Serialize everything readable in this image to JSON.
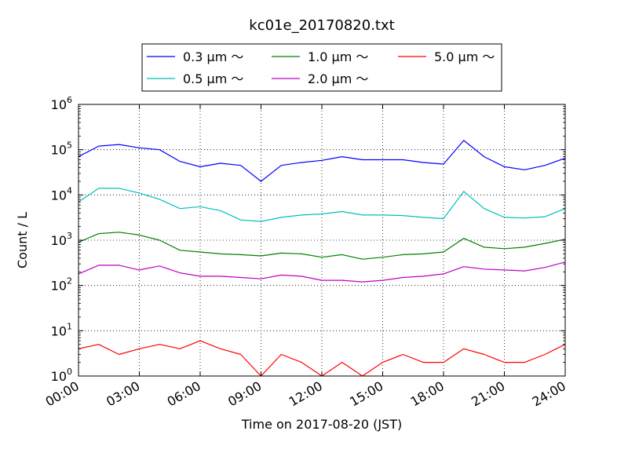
{
  "chart_data": {
    "type": "line",
    "title": "kc01e_20170820.txt",
    "xlabel": "Time on 2017-08-20 (JST)",
    "ylabel": "Count / L",
    "yscale": "log",
    "ylim": [
      1,
      1000000
    ],
    "xlim": [
      "00:00",
      "24:00"
    ],
    "grid": true,
    "legend_position": "top-center",
    "xtick_labels": [
      "00:00",
      "03:00",
      "06:00",
      "09:00",
      "12:00",
      "15:00",
      "18:00",
      "21:00",
      "24:00"
    ],
    "ytick_labels": [
      {
        "base": "10",
        "exp": "0"
      },
      {
        "base": "10",
        "exp": "1"
      },
      {
        "base": "10",
        "exp": "2"
      },
      {
        "base": "10",
        "exp": "3"
      },
      {
        "base": "10",
        "exp": "4"
      },
      {
        "base": "10",
        "exp": "5"
      },
      {
        "base": "10",
        "exp": "6"
      }
    ],
    "x": [
      "00:00",
      "01:00",
      "02:00",
      "03:00",
      "04:00",
      "05:00",
      "06:00",
      "07:00",
      "08:00",
      "09:00",
      "10:00",
      "11:00",
      "12:00",
      "13:00",
      "14:00",
      "15:00",
      "16:00",
      "17:00",
      "18:00",
      "19:00",
      "20:00",
      "21:00",
      "22:00",
      "23:00",
      "24:00"
    ],
    "series": [
      {
        "name": "0.3 μm ～",
        "color": "#0000ff",
        "values": [
          70000,
          120000,
          130000,
          110000,
          100000,
          55000,
          42000,
          50000,
          45000,
          20000,
          45000,
          52000,
          58000,
          70000,
          60000,
          60000,
          60000,
          52000,
          48000,
          160000,
          70000,
          42000,
          36000,
          45000,
          65000
        ]
      },
      {
        "name": "0.5 μm ～",
        "color": "#00bfbf",
        "values": [
          7000,
          14000,
          14000,
          11000,
          8000,
          5000,
          5500,
          4500,
          2800,
          2600,
          3200,
          3600,
          3800,
          4300,
          3600,
          3600,
          3500,
          3200,
          3000,
          12000,
          5000,
          3200,
          3100,
          3300,
          5000
        ]
      },
      {
        "name": "1.0 μm ～",
        "color": "#008000",
        "values": [
          900,
          1400,
          1500,
          1300,
          1000,
          600,
          550,
          500,
          480,
          450,
          520,
          500,
          420,
          480,
          380,
          420,
          480,
          500,
          550,
          1100,
          700,
          650,
          700,
          850,
          1050
        ]
      },
      {
        "name": "2.0 μm ～",
        "color": "#bf00bf",
        "values": [
          180,
          280,
          280,
          220,
          270,
          190,
          160,
          160,
          150,
          140,
          170,
          160,
          130,
          130,
          120,
          130,
          150,
          160,
          180,
          260,
          230,
          220,
          210,
          250,
          330
        ]
      },
      {
        "name": "5.0 μm ～",
        "color": "#ff0000",
        "values": [
          4,
          5,
          3,
          4,
          5,
          4,
          6,
          4,
          3,
          1,
          3,
          2,
          1,
          2,
          1,
          2,
          3,
          2,
          2,
          4,
          3,
          2,
          2,
          3,
          5
        ]
      }
    ]
  }
}
